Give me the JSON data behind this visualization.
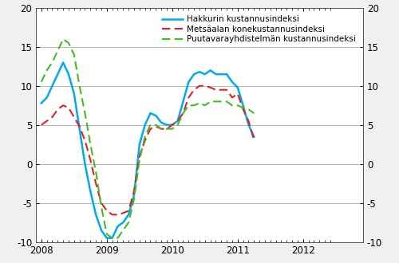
{
  "ylim": [
    -10,
    20
  ],
  "yticks": [
    -10,
    -5,
    0,
    5,
    10,
    15,
    20
  ],
  "background_color": "#f0f0f0",
  "plot_bg_color": "#ffffff",
  "grid_color": "#aaaaaa",
  "hakkuri": [
    7.8,
    8.5,
    10.0,
    11.5,
    13.0,
    11.5,
    9.0,
    4.5,
    0.0,
    -3.5,
    -6.5,
    -8.5,
    -9.5,
    -9.5,
    -8.0,
    -7.5,
    -6.5,
    -4.0,
    2.5,
    5.0,
    6.5,
    6.2,
    5.3,
    5.0,
    5.0,
    5.5,
    8.0,
    10.5,
    11.5,
    11.8,
    11.5,
    12.0,
    11.5,
    11.5,
    11.5,
    10.5,
    9.8,
    7.5,
    5.0,
    3.5
  ],
  "metsaala": [
    5.0,
    5.5,
    6.0,
    7.0,
    7.5,
    7.2,
    6.0,
    4.8,
    3.0,
    0.5,
    -2.5,
    -5.0,
    -6.0,
    -6.5,
    -6.5,
    -6.3,
    -6.0,
    -3.5,
    1.0,
    3.0,
    4.5,
    4.8,
    4.5,
    4.5,
    5.0,
    5.5,
    6.5,
    8.5,
    9.5,
    10.0,
    10.0,
    9.8,
    9.5,
    9.5,
    9.5,
    8.5,
    9.0,
    7.0,
    5.5,
    3.0
  ],
  "puutavara": [
    10.5,
    12.0,
    13.0,
    14.5,
    16.0,
    15.5,
    14.0,
    10.0,
    6.5,
    2.5,
    -1.0,
    -5.5,
    -9.0,
    -9.5,
    -9.5,
    -8.5,
    -7.5,
    -4.5,
    0.5,
    3.5,
    5.0,
    5.0,
    4.5,
    4.5,
    4.5,
    5.0,
    6.5,
    7.5,
    7.5,
    7.8,
    7.5,
    8.0,
    8.0,
    8.0,
    8.0,
    7.5,
    7.5,
    7.2,
    7.0,
    6.5
  ],
  "hakkuri_color": "#00aaee",
  "metsaala_color": "#dd2222",
  "puutavara_color": "#44bb22",
  "hakkuri_label": "Hakkurin kustannusindeksi",
  "metsaala_label": "Metsäalan konekustannusindeksi",
  "puutavara_label": "Puutavarayhdistelmän kustannusindeksi",
  "xticks": [
    2008.0,
    2009.0,
    2010.0,
    2011.0,
    2012.0
  ],
  "xtick_labels": [
    "2008",
    "2009",
    "2010",
    "2011",
    "2012"
  ],
  "xlim": [
    2007.917,
    2012.917
  ]
}
